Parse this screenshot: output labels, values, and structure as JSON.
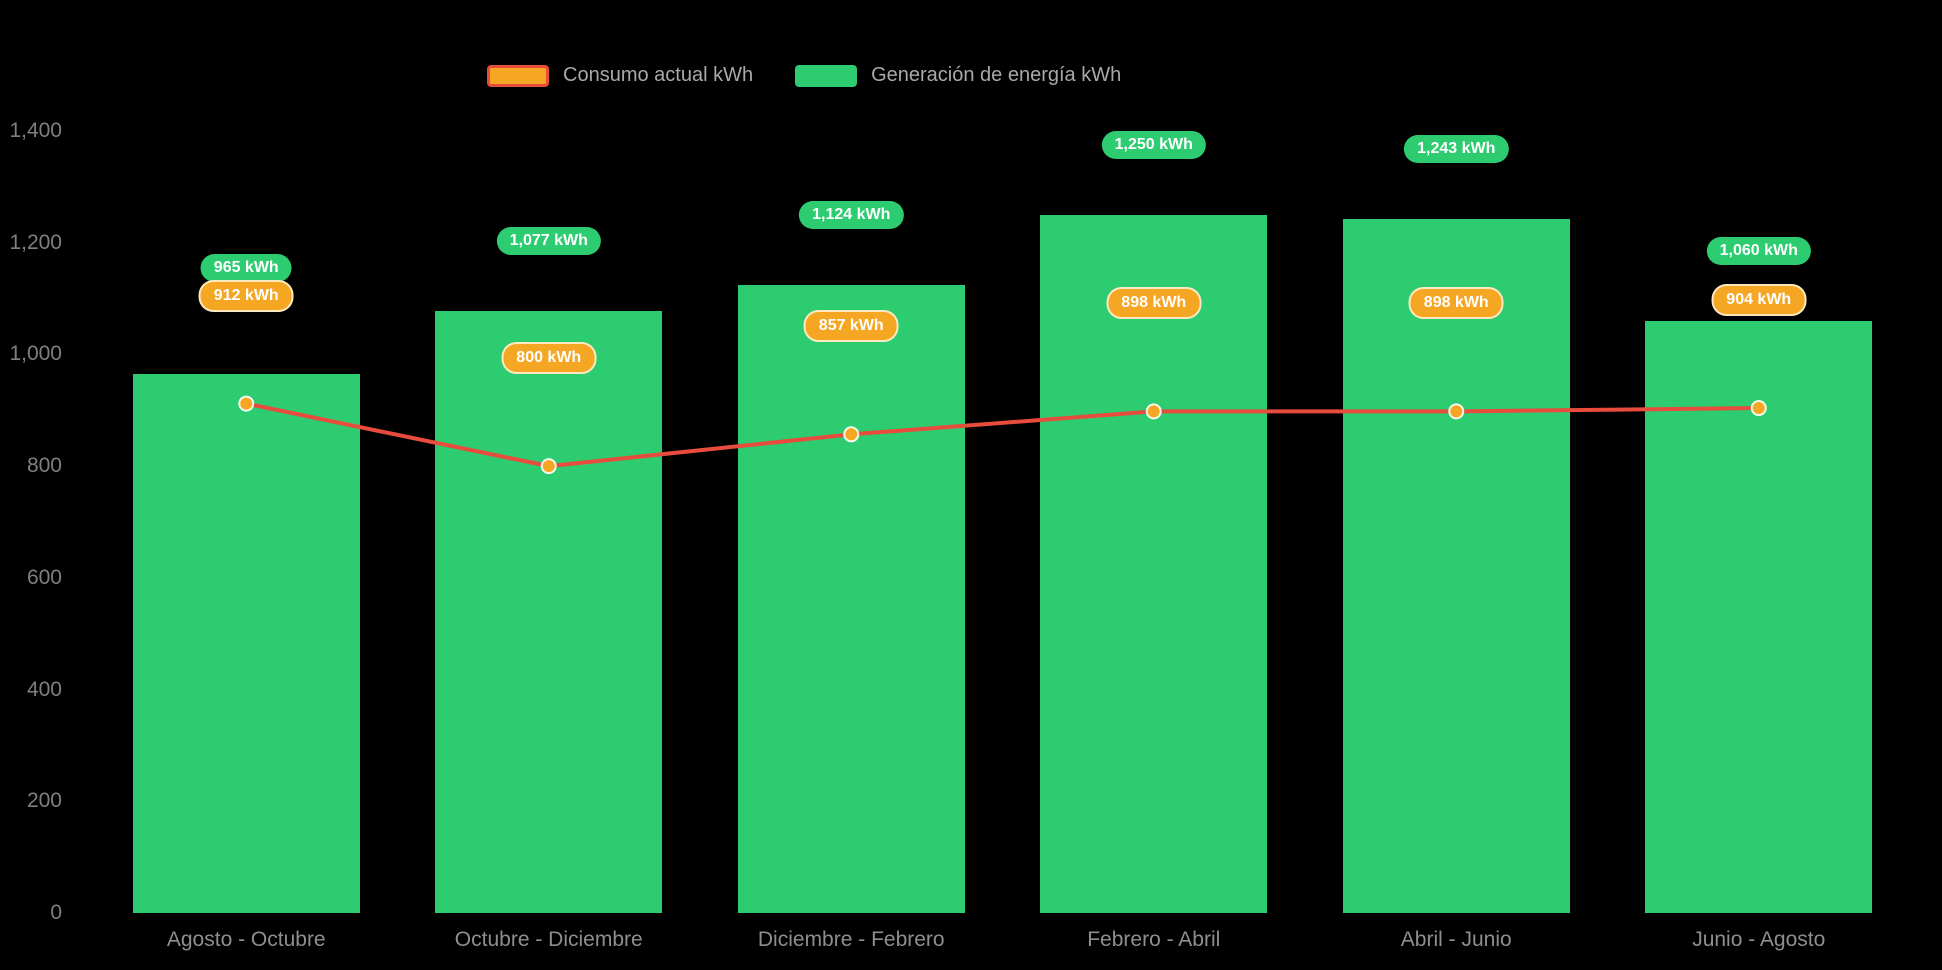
{
  "background": "#000000",
  "legend": {
    "items": [
      {
        "label": "Consumo actual kWh",
        "swatch_fill": "#f5a623",
        "swatch_border": "#e74c3c"
      },
      {
        "label": "Generación de energía kWh",
        "swatch_fill": "#2ecc71",
        "swatch_border": "#2ecc71"
      }
    ]
  },
  "chart_data": {
    "type": "bar",
    "title": "",
    "categories": [
      "Agosto - Octubre",
      "Octubre - Diciembre",
      "Diciembre - Febrero",
      "Febrero - Abril",
      "Abril - Junio",
      "Junio - Agosto"
    ],
    "series": [
      {
        "name": "Generación de energía kWh",
        "type": "bar",
        "color": "#2ecc71",
        "values": [
          965,
          1077,
          1124,
          1250,
          1243,
          1060
        ],
        "labels": [
          "965 kWh",
          "1,077 kWh",
          "1,124 kWh",
          "1,250 kWh",
          "1,243 kWh",
          "1,060 kWh"
        ]
      },
      {
        "name": "Consumo actual kWh",
        "type": "line",
        "color": "#e74c3c",
        "point_color": "#f5a623",
        "values": [
          912,
          800,
          857,
          898,
          898,
          904
        ],
        "labels": [
          "912 kWh",
          "800 kWh",
          "857 kWh",
          "898 kWh",
          "898 kWh",
          "904 kWh"
        ]
      }
    ],
    "y_axis": {
      "tick_labels": [
        "0",
        "200",
        "400",
        "600",
        "800",
        "1,000",
        "1,200",
        "1,400"
      ],
      "tick_values": [
        0,
        200,
        400,
        600,
        800,
        1000,
        1200,
        1400
      ],
      "min": 0,
      "max": 1400
    },
    "grid": false,
    "legend_position": "top"
  }
}
